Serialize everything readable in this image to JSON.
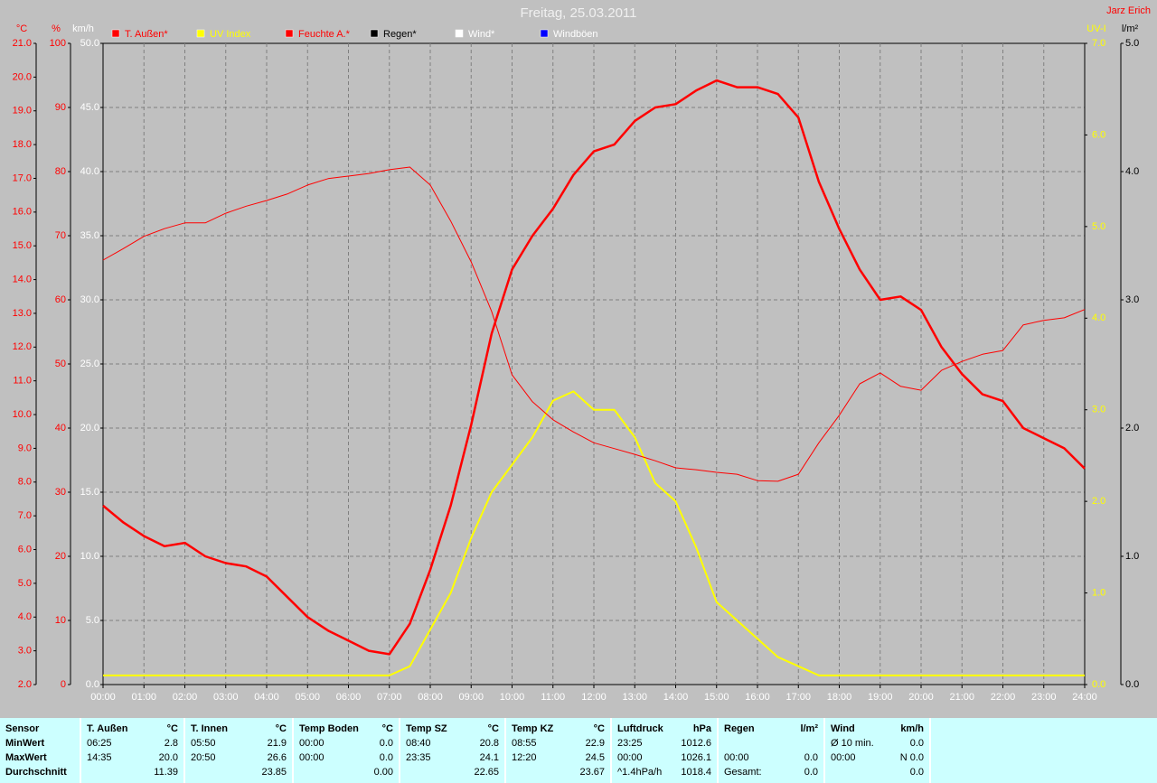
{
  "chart_data": {
    "type": "line",
    "title": "Freitag, 25.03.2011",
    "corner_text": "Jarz Erich",
    "x": [
      0,
      0.5,
      1,
      1.5,
      2,
      2.5,
      3,
      3.5,
      4,
      4.5,
      5,
      5.5,
      6,
      6.5,
      7,
      7.5,
      8,
      8.5,
      9,
      9.5,
      10,
      10.5,
      11,
      11.5,
      12,
      12.5,
      13,
      13.5,
      14,
      14.5,
      15,
      15.5,
      16,
      16.5,
      17,
      17.5,
      18,
      18.5,
      19,
      19.5,
      20,
      20.5,
      21,
      21.5,
      22,
      22.5,
      23,
      23.5,
      24
    ],
    "xlim": [
      0,
      24
    ],
    "xticks": [
      {
        "value": 0,
        "label": "00:00"
      },
      {
        "value": 1,
        "label": "01:00"
      },
      {
        "value": 2,
        "label": "02:00"
      },
      {
        "value": 3,
        "label": "03:00"
      },
      {
        "value": 4,
        "label": "04:00"
      },
      {
        "value": 5,
        "label": "05:00"
      },
      {
        "value": 6,
        "label": "06:00"
      },
      {
        "value": 7,
        "label": "07:00"
      },
      {
        "value": 8,
        "label": "08:00"
      },
      {
        "value": 9,
        "label": "09:00"
      },
      {
        "value": 10,
        "label": "10:00"
      },
      {
        "value": 11,
        "label": "11:00"
      },
      {
        "value": 12,
        "label": "12:00"
      },
      {
        "value": 13,
        "label": "13:00"
      },
      {
        "value": 14,
        "label": "14:00"
      },
      {
        "value": 15,
        "label": "15:00"
      },
      {
        "value": 16,
        "label": "16:00"
      },
      {
        "value": 17,
        "label": "17:00"
      },
      {
        "value": 18,
        "label": "18:00"
      },
      {
        "value": 19,
        "label": "19:00"
      },
      {
        "value": 20,
        "label": "20:00"
      },
      {
        "value": 21,
        "label": "21:00"
      },
      {
        "value": 22,
        "label": "22:00"
      },
      {
        "value": 23,
        "label": "23:00"
      },
      {
        "value": 24,
        "label": "24:00"
      }
    ],
    "xgrid": true,
    "grid_axis": "y2",
    "axes": {
      "y": {
        "label": "°C",
        "color": "#ff0000",
        "side": "left",
        "lim": [
          2,
          21
        ],
        "ticks": [
          {
            "value": 2,
            "label": "2.0"
          },
          {
            "value": 3,
            "label": "3.0"
          },
          {
            "value": 4,
            "label": "4.0"
          },
          {
            "value": 5,
            "label": "5.0"
          },
          {
            "value": 6,
            "label": "6.0"
          },
          {
            "value": 7,
            "label": "7.0"
          },
          {
            "value": 8,
            "label": "8.0"
          },
          {
            "value": 9,
            "label": "9.0"
          },
          {
            "value": 10,
            "label": "10.0"
          },
          {
            "value": 11,
            "label": "11.0"
          },
          {
            "value": 12,
            "label": "12.0"
          },
          {
            "value": 13,
            "label": "13.0"
          },
          {
            "value": 14,
            "label": "14.0"
          },
          {
            "value": 15,
            "label": "15.0"
          },
          {
            "value": 16,
            "label": "16.0"
          },
          {
            "value": 17,
            "label": "17.0"
          },
          {
            "value": 18,
            "label": "18.0"
          },
          {
            "value": 19,
            "label": "19.0"
          },
          {
            "value": 20,
            "label": "20.0"
          },
          {
            "value": 21,
            "label": "21.0"
          }
        ]
      },
      "y2": {
        "label": "%",
        "color": "#ff0000",
        "side": "left",
        "lim": [
          0,
          100
        ],
        "ticks": [
          0,
          10,
          20,
          30,
          40,
          50,
          60,
          70,
          80,
          90,
          100
        ]
      },
      "y3": {
        "label": "km/h",
        "color": "#ffffff",
        "side": "left",
        "lim": [
          0,
          50
        ],
        "ticks": [
          {
            "value": 0,
            "label": "0.0"
          },
          {
            "value": 5,
            "label": "5.0"
          },
          {
            "value": 10,
            "label": "10.0"
          },
          {
            "value": 15,
            "label": "15.0"
          },
          {
            "value": 20,
            "label": "20.0"
          },
          {
            "value": 25,
            "label": "25.0"
          },
          {
            "value": 30,
            "label": "30.0"
          },
          {
            "value": 35,
            "label": "35.0"
          },
          {
            "value": 40,
            "label": "40.0"
          },
          {
            "value": 45,
            "label": "45.0"
          },
          {
            "value": 50,
            "label": "50.0"
          }
        ]
      },
      "y4": {
        "label": "UV-I",
        "color": "#ffff00",
        "side": "right",
        "lim": [
          0,
          7
        ],
        "ticks": [
          {
            "value": 0,
            "label": "0.0"
          },
          {
            "value": 1,
            "label": "1.0"
          },
          {
            "value": 2,
            "label": "2.0"
          },
          {
            "value": 3,
            "label": "3.0"
          },
          {
            "value": 4,
            "label": "4.0"
          },
          {
            "value": 5,
            "label": "5.0"
          },
          {
            "value": 6,
            "label": "6.0"
          },
          {
            "value": 7,
            "label": "7.0"
          }
        ]
      },
      "y5": {
        "label": "l/m²",
        "color": "#000000",
        "side": "right",
        "lim": [
          0,
          5
        ],
        "ticks": [
          {
            "value": 0,
            "label": "0.0"
          },
          {
            "value": 1,
            "label": "1.0"
          },
          {
            "value": 2,
            "label": "2.0"
          },
          {
            "value": 3,
            "label": "3.0"
          },
          {
            "value": 4,
            "label": "4.0"
          },
          {
            "value": 5,
            "label": "5.0"
          }
        ]
      }
    },
    "series": [
      {
        "name": "T. Außen*",
        "color": "#ff0000",
        "width": 2.5,
        "axis": "y",
        "values": [
          7.3,
          6.8,
          6.4,
          6.1,
          6.2,
          5.8,
          5.6,
          5.5,
          5.2,
          4.6,
          4.0,
          3.6,
          3.3,
          3.0,
          2.9,
          3.8,
          5.4,
          7.3,
          9.7,
          12.4,
          14.3,
          15.3,
          16.1,
          17.1,
          17.8,
          18.0,
          18.7,
          19.1,
          19.2,
          19.6,
          19.9,
          19.7,
          19.7,
          19.5,
          18.8,
          16.9,
          15.5,
          14.3,
          13.4,
          13.5,
          13.1,
          12.0,
          11.2,
          10.6,
          10.4,
          9.6,
          9.3,
          9.0,
          8.4
        ]
      },
      {
        "name": "UV Index",
        "color": "#ffff00",
        "width": 2,
        "axis": "y4",
        "values": [
          0.1,
          0.1,
          0.1,
          0.1,
          0.1,
          0.1,
          0.1,
          0.1,
          0.1,
          0.1,
          0.1,
          0.1,
          0.1,
          0.1,
          0.1,
          0.2,
          0.6,
          1.0,
          1.6,
          2.1,
          2.4,
          2.7,
          3.1,
          3.2,
          3.0,
          3.0,
          2.7,
          2.2,
          2.0,
          1.5,
          0.9,
          0.7,
          0.5,
          0.3,
          0.2,
          0.1,
          0.1,
          0.1,
          0.1,
          0.1,
          0.1,
          0.1,
          0.1,
          0.1,
          0.1,
          0.1,
          0.1,
          0.1,
          0.1
        ]
      },
      {
        "name": "Feuchte A.*",
        "color": "#ff0000",
        "width": 1,
        "axis": "y2",
        "values": [
          66.2,
          68.0,
          69.9,
          71.1,
          72.0,
          72.0,
          73.5,
          74.6,
          75.5,
          76.5,
          77.9,
          78.9,
          79.3,
          79.7,
          80.3,
          80.7,
          77.9,
          72.3,
          65.9,
          58.2,
          48.3,
          44.1,
          41.3,
          39.4,
          37.7,
          36.8,
          35.9,
          34.9,
          33.8,
          33.5,
          33.1,
          32.8,
          31.8,
          31.7,
          32.8,
          37.7,
          42.0,
          46.9,
          48.6,
          46.5,
          45.9,
          49.0,
          50.4,
          51.5,
          52.1,
          56.1,
          56.8,
          57.2,
          58.5
        ]
      },
      {
        "name": "Regen*",
        "color": "#000000",
        "label_color": "#000000",
        "axis": "y5"
      },
      {
        "name": "Wind*",
        "color": "#ffffff",
        "label_color": "#ffffff",
        "axis": "y3"
      },
      {
        "name": "Windböen",
        "color": "#0000ff",
        "label_color": "#ffffff",
        "axis": "y3"
      }
    ]
  },
  "table": {
    "row_labels": [
      "Sensor",
      "MinWert",
      "MaxWert",
      "Durchschnitt"
    ],
    "groups": [
      {
        "name": "T. Außen",
        "unit": "°C",
        "rows": [
          [
            "06:25",
            "2.8"
          ],
          [
            "14:35",
            "20.0"
          ],
          [
            null,
            "11.39"
          ]
        ]
      },
      {
        "name": "T. Innen",
        "unit": "°C",
        "rows": [
          [
            "05:50",
            "21.9"
          ],
          [
            "20:50",
            "26.6"
          ],
          [
            null,
            "23.85"
          ]
        ]
      },
      {
        "name": "Temp Boden",
        "unit": "°C",
        "rows": [
          [
            "00:00",
            "0.0"
          ],
          [
            "00:00",
            "0.0"
          ],
          [
            null,
            "0.00"
          ]
        ]
      },
      {
        "name": "Temp SZ",
        "unit": "°C",
        "rows": [
          [
            "08:40",
            "20.8"
          ],
          [
            "23:35",
            "24.1"
          ],
          [
            null,
            "22.65"
          ]
        ]
      },
      {
        "name": "Temp KZ",
        "unit": "°C",
        "rows": [
          [
            "08:55",
            "22.9"
          ],
          [
            "12:20",
            "24.5"
          ],
          [
            null,
            "23.67"
          ]
        ]
      },
      {
        "name": "Luftdruck",
        "unit": "hPa",
        "rows": [
          [
            "23:25",
            "1012.6"
          ],
          [
            "00:00",
            "1026.1"
          ],
          [
            "^1.4hPa/h",
            "1018.4"
          ]
        ]
      },
      {
        "name": "Regen",
        "unit": "l/m²",
        "rows": [
          [
            null,
            null
          ],
          [
            "00:00",
            "0.0"
          ],
          [
            "Gesamt:",
            "0.0"
          ]
        ]
      },
      {
        "name": "Wind",
        "unit": "km/h",
        "rows": [
          [
            "Ø 10 min.",
            "0.0"
          ],
          [
            "00:00",
            "N 0.0"
          ],
          [
            null,
            "0.0"
          ]
        ]
      }
    ]
  }
}
